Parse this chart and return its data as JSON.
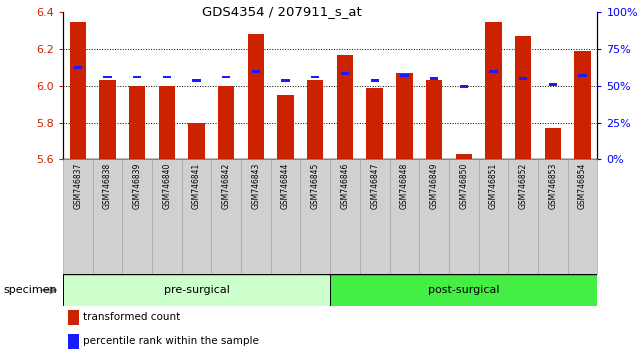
{
  "title": "GDS4354 / 207911_s_at",
  "samples": [
    "GSM746837",
    "GSM746838",
    "GSM746839",
    "GSM746840",
    "GSM746841",
    "GSM746842",
    "GSM746843",
    "GSM746844",
    "GSM746845",
    "GSM746846",
    "GSM746847",
    "GSM746848",
    "GSM746849",
    "GSM746850",
    "GSM746851",
    "GSM746852",
    "GSM746853",
    "GSM746854"
  ],
  "bar_values": [
    6.35,
    6.03,
    6.0,
    6.0,
    5.8,
    6.0,
    6.28,
    5.95,
    6.03,
    6.17,
    5.99,
    6.07,
    6.03,
    5.63,
    6.35,
    6.27,
    5.77,
    6.19
  ],
  "percentile_values": [
    6.09,
    6.04,
    6.04,
    6.04,
    6.02,
    6.04,
    6.07,
    6.02,
    6.04,
    6.06,
    6.02,
    6.05,
    6.03,
    5.99,
    6.07,
    6.03,
    6.0,
    6.05
  ],
  "bar_color": "#cc2200",
  "percentile_color": "#1a1aff",
  "ylim_left": [
    5.6,
    6.4
  ],
  "ylim_right": [
    0,
    100
  ],
  "yticks_left": [
    5.6,
    5.8,
    6.0,
    6.2,
    6.4
  ],
  "yticks_right": [
    0,
    25,
    50,
    75,
    100
  ],
  "ytick_labels_right": [
    "0%",
    "25%",
    "50%",
    "75%",
    "100%"
  ],
  "groups": [
    {
      "label": "pre-surgical",
      "start": 0,
      "end": 9,
      "color": "#ccffcc"
    },
    {
      "label": "post-surgical",
      "start": 9,
      "end": 18,
      "color": "#44ee44"
    }
  ],
  "specimen_label": "specimen",
  "legend_items": [
    {
      "label": "transformed count",
      "color": "#cc2200"
    },
    {
      "label": "percentile rank within the sample",
      "color": "#1a1aff"
    }
  ],
  "bar_width": 0.55,
  "ybaseline": 5.6,
  "grid_lines": [
    5.8,
    6.0,
    6.2
  ],
  "xtick_bg_color": "#d0d0d0",
  "xtick_border_color": "#999999"
}
